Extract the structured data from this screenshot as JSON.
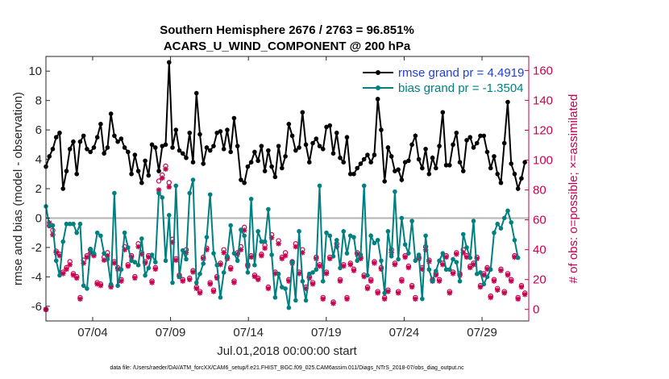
{
  "chart_data": {
    "type": "line",
    "title": "Southern Hemisphere 2676 / 2763 = 96.851%",
    "subtitle": "ACARS_U_WIND_COMPONENT @ 200 hPa",
    "xlabel": "Jul.01,2018 00:00:00 start",
    "ylabel": "rmse and bias (model - observation)",
    "ylabel_right": "# of obs: o=possible; ×=assimilated",
    "x_tick_labels": [
      "07/04",
      "07/09",
      "07/14",
      "07/19",
      "07/24",
      "07/29"
    ],
    "x_tick_days": [
      4,
      9,
      14,
      19,
      24,
      29
    ],
    "xlim": [
      1,
      32
    ],
    "ylim": [
      -7,
      11
    ],
    "y_ticks": [
      -6,
      -4,
      -2,
      0,
      2,
      4,
      6,
      8,
      10
    ],
    "ylim_right": [
      -7.7,
      169.4
    ],
    "y_ticks_right": [
      0,
      20,
      40,
      60,
      80,
      100,
      120,
      140,
      160
    ],
    "legend_position": "top-right",
    "grid": false,
    "colors": {
      "rmse": "#000000",
      "bias": "#008080",
      "obs": "#c8004e",
      "zero_line": "#b3b3b3",
      "frame": "#262626"
    },
    "series": [
      {
        "name": "rmse grand pr = 4.4919",
        "values": [
          3.5,
          4.2,
          4.7,
          5.5,
          5.8,
          2.0,
          3.2,
          4.7,
          5.2,
          3.0,
          5.2,
          5.6,
          4.7,
          4.5,
          4.8,
          5.5,
          6.4,
          4.4,
          4.8,
          7.1,
          5.6,
          5.2,
          5.4,
          4.8,
          4.5,
          3.0,
          4.3,
          3.2,
          2.4,
          3.9,
          2.9,
          5.0,
          4.8,
          3.2,
          4.9,
          5.0,
          10.6,
          4.8,
          6.0,
          4.6,
          4.4,
          4.1,
          5.8,
          3.8,
          8.5,
          5.7,
          3.7,
          4.8,
          4.6,
          4.9,
          5.8,
          5.9,
          4.7,
          6.0,
          4.5,
          6.8,
          4.9,
          2.6,
          2.4,
          3.5,
          3.8,
          4.5,
          3.9,
          4.9,
          3.2,
          4.6,
          3.5,
          2.8,
          4.9,
          3.4,
          4.2,
          6.4,
          5.6,
          4.6,
          4.8,
          7.2,
          5.0,
          3.8,
          5.1,
          5.4,
          4.9,
          4.7,
          6.2,
          6.3,
          4.4,
          5.8,
          4.1,
          3.8,
          5.5,
          3.0,
          3.0,
          3.4,
          3.7,
          4.0,
          4.3,
          3.8,
          4.3,
          8.1,
          6.0,
          2.5,
          4.8,
          4.2,
          3.2,
          3.3,
          2.6,
          3.8,
          3.9,
          5.0,
          5.6,
          4.0,
          3.4,
          4.7,
          3.0,
          4.1,
          3.4,
          4.9,
          7.2,
          3.6,
          3.6,
          5.0,
          5.8,
          3.8,
          3.2,
          5.3,
          5.5,
          4.8,
          5.1,
          5.6,
          5.6,
          4.5,
          3.4,
          4.2,
          3.0,
          2.4,
          5.1,
          7.9,
          3.7,
          3.0,
          2.0,
          2.7,
          3.8
        ]
      },
      {
        "name": "bias grand pr = -1.3504",
        "values": [
          0.8,
          -0.5,
          -0.5,
          -2.9,
          -3.9,
          -1.6,
          -0.4,
          -0.4,
          -0.4,
          -1.0,
          -0.4,
          -4.6,
          -4.8,
          -2.1,
          -2.4,
          -1.0,
          -1.2,
          -2.4,
          -2.8,
          -4.5,
          1.7,
          -4.6,
          -3.5,
          -1.0,
          -2.0,
          -2.9,
          -3.0,
          -3.2,
          -1.4,
          -3.9,
          -3.4,
          -2.5,
          -3.0,
          1.7,
          1.4,
          -2.9,
          0.2,
          -4.4,
          2.2,
          -4.0,
          -2.2,
          -2.8,
          1.7,
          2.6,
          -4.4,
          -3.8,
          -3.1,
          -1.3,
          1.6,
          -2.4,
          -3.2,
          -5.4,
          -3.7,
          -2.6,
          -0.5,
          -2.4,
          -2.9,
          -0.8,
          -1.2,
          -3.7,
          1.3,
          -3.2,
          -0.9,
          -1.6,
          -1.6,
          0.6,
          -2.5,
          -5.4,
          -3.8,
          -4.7,
          -4.8,
          -6.1,
          -3.0,
          -5.6,
          -0.9,
          -4.3,
          -5.6,
          -3.8,
          -3.7,
          -3.5,
          2.2,
          -4.3,
          -1.0,
          -1.2,
          -2.6,
          -1.5,
          -3.4,
          -0.9,
          -2.4,
          -1.2,
          -1.3,
          -2.9,
          -2.5,
          2.2,
          -3.9,
          -1.2,
          -1.7,
          -1.5,
          -2.9,
          -5.1,
          -0.9,
          -2.6,
          1.8,
          -2.8,
          0.0,
          -1.8,
          -2.4,
          -0.2,
          -2.9,
          -2.5,
          -5.5,
          -1.2,
          -3.5,
          -4.3,
          -3.6,
          -2.9,
          -2.4,
          -3.5,
          -3.5,
          -2.8,
          -3.0,
          -4.3,
          -1.1,
          -2.0,
          -2.7,
          -0.2,
          -3.8,
          -3.7,
          -4.5,
          -4.0,
          -3.5,
          -1.0,
          -0.4,
          -0.7,
          0.0,
          0.5,
          -0.3,
          -1.5,
          -2.7
        ]
      }
    ],
    "obs_counts_possible": [
      0,
      56,
      53,
      39,
      37,
      25,
      28,
      32,
      24,
      22,
      8,
      33,
      36,
      40,
      37,
      18,
      17,
      35,
      38,
      16,
      32,
      28,
      20,
      42,
      30,
      36,
      22,
      44,
      38,
      32,
      36,
      19,
      28,
      86,
      90,
      96,
      85,
      47,
      34,
      23,
      20,
      40,
      21,
      26,
      15,
      12,
      35,
      41,
      18,
      13,
      22,
      31,
      40,
      35,
      28,
      19,
      38,
      42,
      55,
      30,
      36,
      23,
      21,
      37,
      43,
      15,
      50,
      25,
      46,
      35,
      38,
      20,
      32,
      44,
      25,
      40,
      15,
      22,
      18,
      35,
      30,
      8,
      25,
      35,
      5,
      44,
      20,
      30,
      8,
      31,
      27,
      38,
      35,
      23,
      15,
      20,
      32,
      12,
      28,
      8,
      13,
      40,
      31,
      12,
      20,
      36,
      29,
      16,
      8,
      35,
      28,
      42,
      33,
      20,
      24,
      20,
      31,
      36,
      12,
      25,
      38,
      24,
      40,
      36,
      29,
      31,
      35,
      16,
      24,
      28,
      9,
      20,
      14,
      27,
      12,
      24,
      20,
      36,
      8,
      16,
      11
    ],
    "obs_counts_assimilated": [
      0,
      58,
      50,
      38,
      36,
      24,
      27,
      30,
      23,
      21,
      7,
      31,
      35,
      38,
      36,
      17,
      16,
      33,
      36,
      15,
      31,
      27,
      19,
      40,
      29,
      35,
      21,
      42,
      37,
      31,
      35,
      18,
      27,
      80,
      88,
      94,
      82,
      45,
      33,
      22,
      19,
      38,
      20,
      25,
      14,
      11,
      34,
      40,
      17,
      12,
      21,
      30,
      38,
      34,
      27,
      18,
      37,
      40,
      53,
      29,
      35,
      22,
      20,
      36,
      41,
      14,
      48,
      24,
      44,
      34,
      36,
      19,
      31,
      42,
      24,
      38,
      14,
      21,
      17,
      34,
      29,
      7,
      24,
      34,
      4,
      42,
      19,
      29,
      7,
      30,
      26,
      37,
      34,
      22,
      14,
      19,
      31,
      11,
      27,
      7,
      12,
      38,
      30,
      11,
      19,
      35,
      28,
      15,
      7,
      34,
      27,
      40,
      32,
      19,
      23,
      19,
      30,
      35,
      11,
      24,
      37,
      23,
      38,
      35,
      28,
      30,
      34,
      15,
      23,
      27,
      8,
      19,
      13,
      26,
      11,
      23,
      19,
      35,
      7,
      15,
      10
    ]
  },
  "footer": "data file: /Users/raeder/DAI/ATM_forcXX/CAM6_setup/f.e21.FHIST_BGC.f09_025.CAM6assim.011/Diags_NTrS_2018-07/obs_diag_output.nc"
}
